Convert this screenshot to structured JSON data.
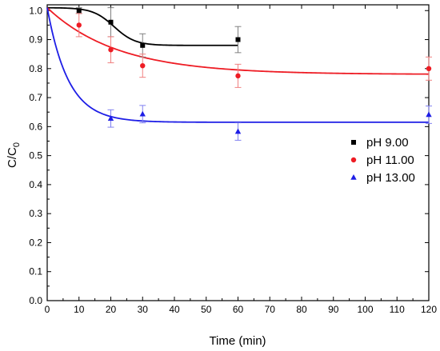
{
  "chart_data": {
    "type": "scatter",
    "xlabel": "Time (min)",
    "ylabel": "C/C",
    "ylabel_sub": "0",
    "xlim": [
      0,
      120
    ],
    "ylim": [
      0.0,
      1.02
    ],
    "xticks": [
      0,
      10,
      20,
      30,
      40,
      50,
      60,
      70,
      80,
      90,
      100,
      110,
      120
    ],
    "yticks": [
      0.0,
      0.1,
      0.2,
      0.3,
      0.4,
      0.5,
      0.6,
      0.7,
      0.8,
      0.9,
      1.0
    ],
    "grid": false,
    "legend_position": "right",
    "series": [
      {
        "name": "pH 9.00",
        "marker": "square",
        "color": "#000000",
        "error_color": "#808080",
        "x": [
          0,
          10,
          20,
          30,
          60
        ],
        "y": [
          1.0,
          1.0,
          0.96,
          0.88,
          0.9
        ],
        "err": [
          0.0,
          0.01,
          0.05,
          0.04,
          0.045
        ],
        "fit": {
          "model": "sigmoid",
          "start": 1.01,
          "end": 0.88,
          "center": 21,
          "k": 0.3
        }
      },
      {
        "name": "pH 11.00",
        "marker": "circle",
        "color": "#ee1c24",
        "error_color": "#f08080",
        "x": [
          0,
          10,
          20,
          30,
          60,
          120
        ],
        "y": [
          1.0,
          0.95,
          0.865,
          0.81,
          0.775,
          0.8
        ],
        "err": [
          0.0,
          0.04,
          0.045,
          0.04,
          0.04,
          0.04
        ],
        "fit": {
          "model": "exp",
          "start": 1.01,
          "end": 0.78,
          "k": 0.045
        }
      },
      {
        "name": "pH 13.00",
        "marker": "triangle",
        "color": "#1e1ee6",
        "error_color": "#8080f0",
        "x": [
          0,
          20,
          30,
          60,
          120
        ],
        "y": [
          1.0,
          0.628,
          0.643,
          0.583,
          0.641
        ],
        "err": [
          0.0,
          0.03,
          0.03,
          0.03,
          0.03
        ],
        "fit": {
          "model": "exp",
          "start": 1.01,
          "end": 0.615,
          "k": 0.15
        }
      }
    ]
  }
}
